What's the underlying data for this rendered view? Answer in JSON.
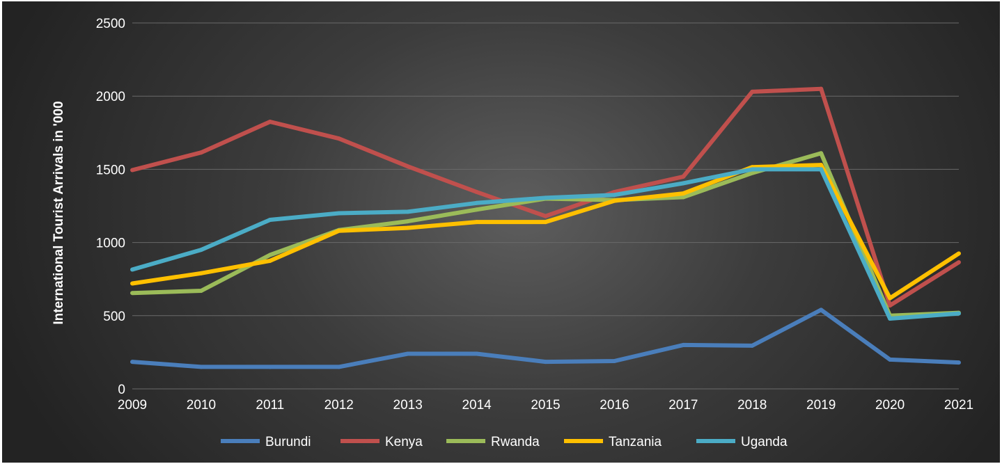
{
  "chart_data": {
    "type": "line",
    "title": "",
    "xlabel": "",
    "ylabel": "International Tourist Arrivals in '000",
    "x": [
      "2009",
      "2010",
      "2011",
      "2012",
      "2013",
      "2014",
      "2015",
      "2016",
      "2017",
      "2018",
      "2019",
      "2020",
      "2021"
    ],
    "ylim": [
      0,
      2500
    ],
    "yticks": [
      0,
      500,
      1000,
      1500,
      2000,
      2500
    ],
    "grid": true,
    "legend_position": "bottom",
    "series": [
      {
        "name": "Burundi",
        "color": "#4a7ebb",
        "values": [
          185,
          150,
          150,
          150,
          240,
          240,
          185,
          190,
          300,
          295,
          540,
          200,
          180
        ]
      },
      {
        "name": "Kenya",
        "color": "#c0504d",
        "values": [
          1495,
          1615,
          1825,
          1710,
          1520,
          1345,
          1180,
          1345,
          1450,
          2030,
          2050,
          570,
          865
        ]
      },
      {
        "name": "Rwanda",
        "color": "#9bbb59",
        "values": [
          655,
          670,
          915,
          1085,
          1145,
          1225,
          1300,
          1290,
          1310,
          1475,
          1610,
          500,
          520
        ]
      },
      {
        "name": "Tanzania",
        "color": "#ffc000",
        "values": [
          720,
          790,
          875,
          1080,
          1100,
          1140,
          1140,
          1285,
          1335,
          1515,
          1530,
          620,
          925
        ]
      },
      {
        "name": "Uganda",
        "color": "#4bacc6",
        "values": [
          815,
          950,
          1155,
          1200,
          1210,
          1270,
          1305,
          1325,
          1405,
          1500,
          1500,
          480,
          515
        ]
      }
    ]
  }
}
